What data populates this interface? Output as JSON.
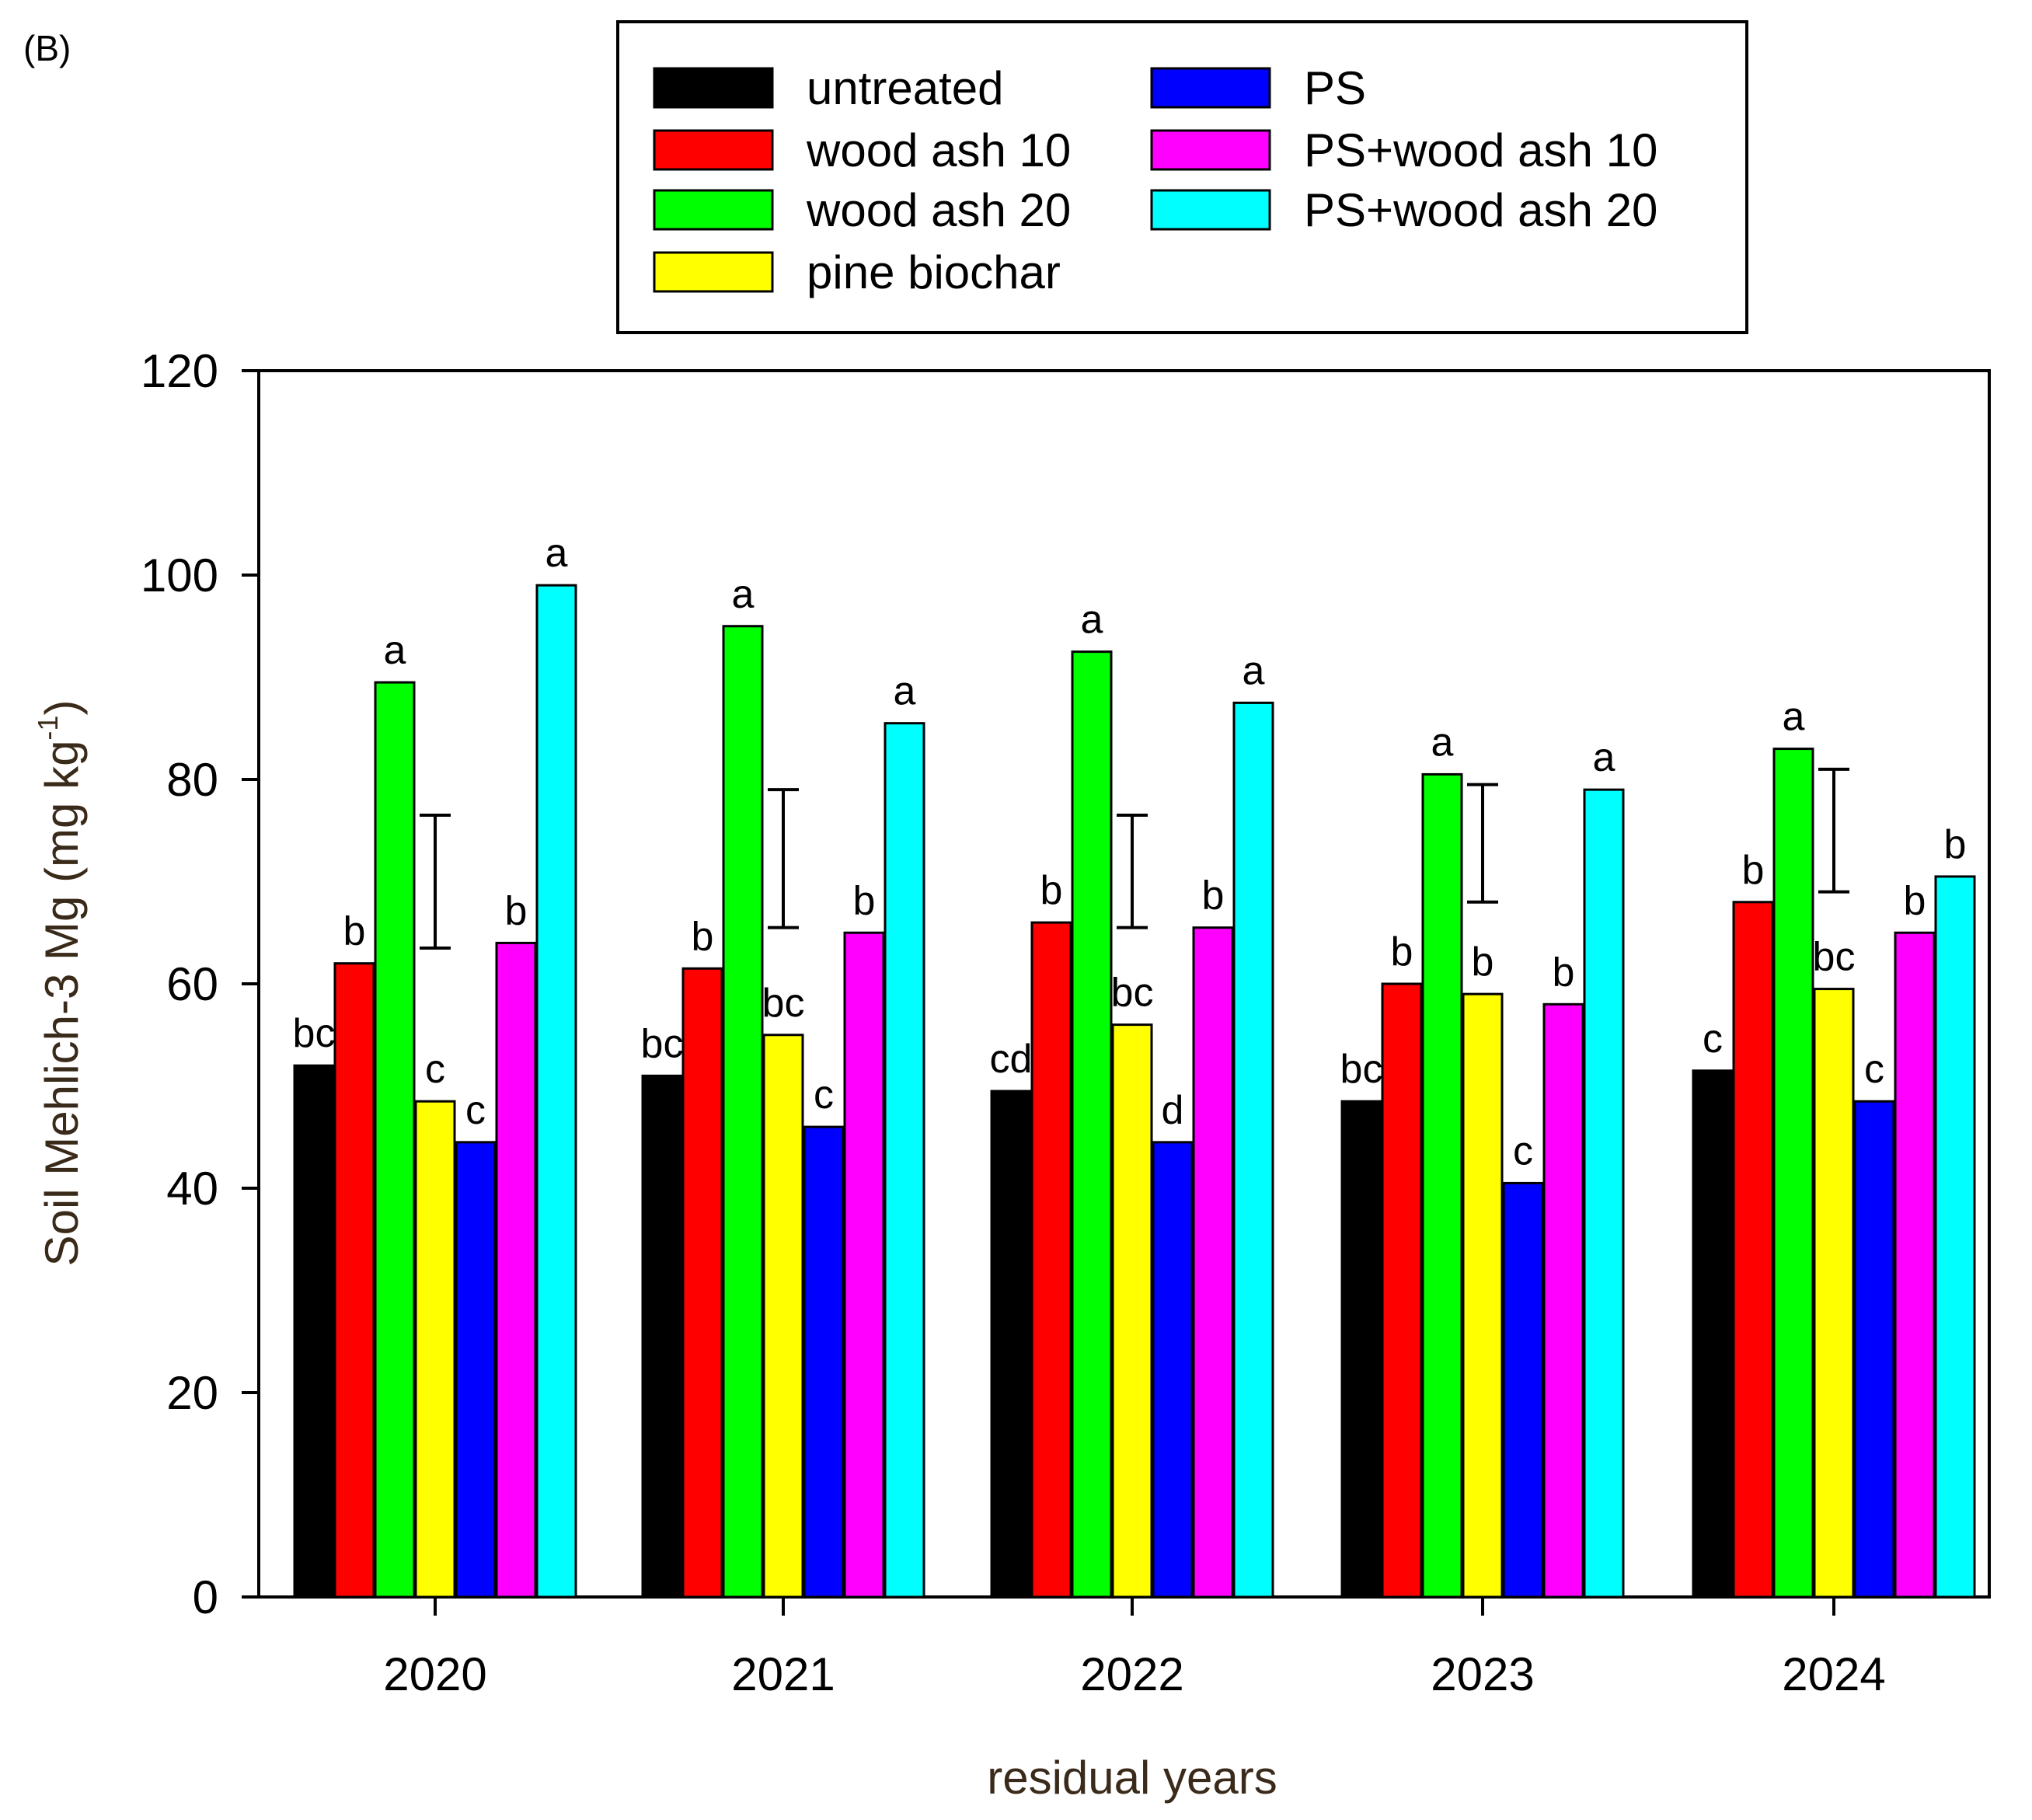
{
  "panel_label": "(B)",
  "chart_data": {
    "type": "bar",
    "title": "",
    "xlabel": "residual years",
    "ylabel_main": "Soil Mehlich-3 Mg (mg kg",
    "ylabel_sup": "-1",
    "ylabel_close": ")",
    "ylim": [
      0,
      120
    ],
    "yticks": [
      "0",
      "20",
      "40",
      "60",
      "80",
      "100",
      "120"
    ],
    "grid": false,
    "legend_placement": "top",
    "categories": [
      "2020",
      "2021",
      "2022",
      "2023",
      "2024"
    ],
    "series": [
      {
        "name": "untreated",
        "color": "#000000",
        "values": [
          52,
          51,
          49.5,
          48.5,
          51.5
        ],
        "labels": [
          "bc",
          "bc",
          "cd",
          "bc",
          "c"
        ]
      },
      {
        "name": "wood ash 10",
        "color": "#ff0000",
        "values": [
          62,
          61.5,
          66,
          60,
          68
        ],
        "labels": [
          "b",
          "b",
          "b",
          "b",
          "b"
        ]
      },
      {
        "name": "wood ash 20",
        "color": "#00ff00",
        "values": [
          89.5,
          95,
          92.5,
          80.5,
          83
        ],
        "labels": [
          "a",
          "a",
          "a",
          "a",
          "a"
        ]
      },
      {
        "name": "pine biochar",
        "color": "#ffff00",
        "values": [
          48.5,
          55,
          56,
          59,
          59.5
        ],
        "labels": [
          "c",
          "bc",
          "bc",
          "b",
          "bc"
        ]
      },
      {
        "name": "PS",
        "color": "#0000ff",
        "values": [
          44.5,
          46,
          44.5,
          40.5,
          48.5
        ],
        "labels": [
          "c",
          "c",
          "d",
          "c",
          "c"
        ]
      },
      {
        "name": "PS+wood ash 10",
        "color": "#ff00ff",
        "values": [
          64,
          65,
          65.5,
          58,
          65
        ],
        "labels": [
          "b",
          "b",
          "b",
          "b",
          "b"
        ]
      },
      {
        "name": "PS+wood ash 20",
        "color": "#00ffff",
        "values": [
          99,
          85.5,
          87.5,
          79,
          70.5
        ],
        "labels": [
          "a",
          "a",
          "a",
          "a",
          "b"
        ]
      }
    ],
    "lsd_bars": [
      {
        "category": "2020",
        "low": 63.5,
        "high": 76.5
      },
      {
        "category": "2021",
        "low": 65.5,
        "high": 79
      },
      {
        "category": "2022",
        "low": 65.5,
        "high": 76.5
      },
      {
        "category": "2023",
        "low": 68,
        "high": 79.5
      },
      {
        "category": "2024",
        "low": 69,
        "high": 81
      }
    ]
  }
}
